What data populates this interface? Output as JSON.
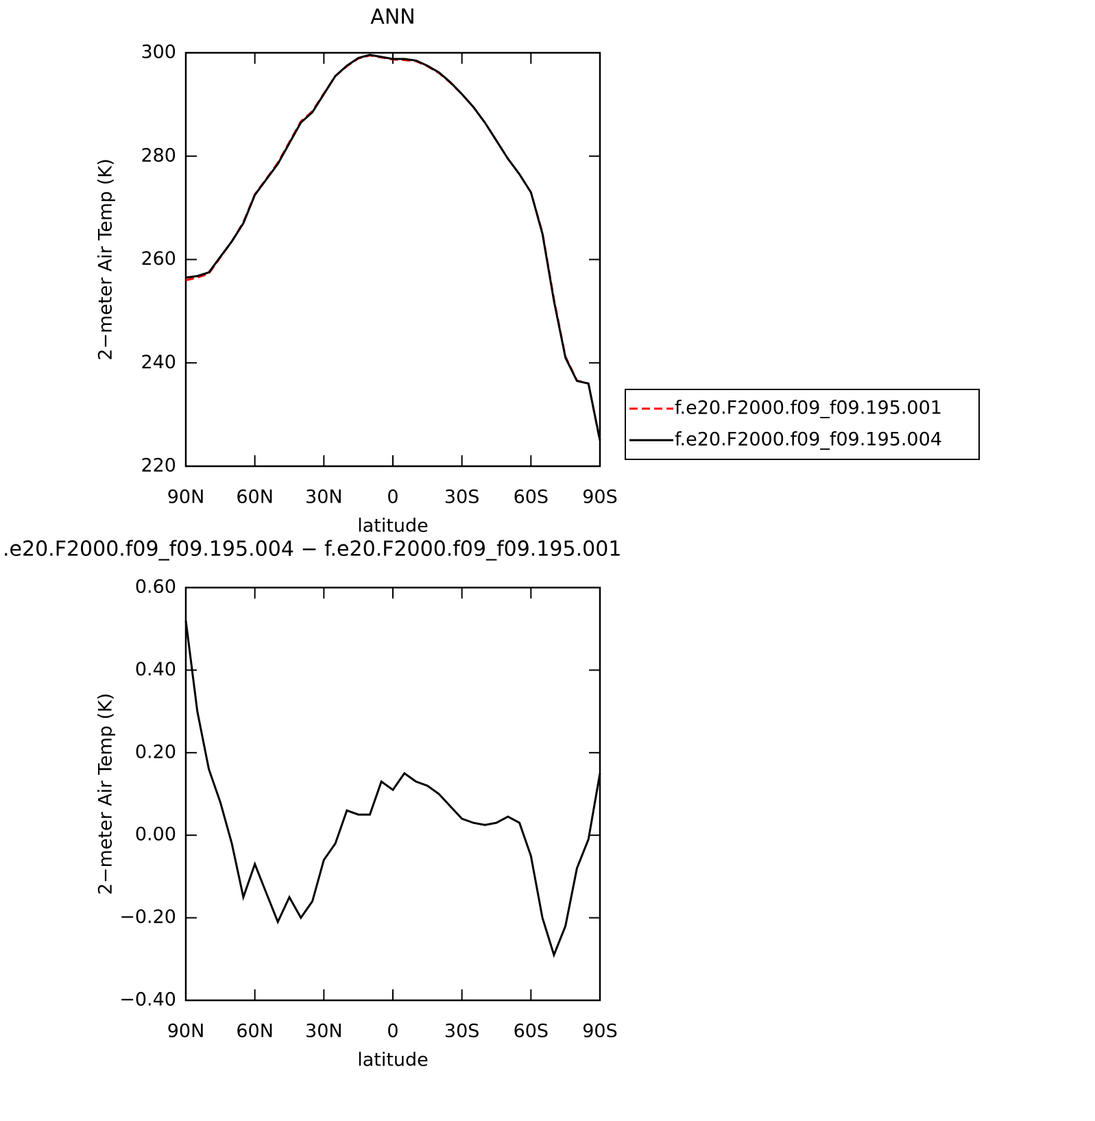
{
  "chart_data": [
    {
      "type": "line",
      "title": "ANN",
      "xlabel": "latitude",
      "ylabel": "2−meter Air Temp (K)",
      "x": [
        90,
        85,
        80,
        75,
        70,
        65,
        60,
        55,
        50,
        45,
        40,
        35,
        30,
        25,
        20,
        15,
        10,
        5,
        0,
        -5,
        -10,
        -15,
        -20,
        -25,
        -30,
        -35,
        -40,
        -45,
        -50,
        -55,
        -60,
        -65,
        -70,
        -75,
        -80,
        -85,
        -90
      ],
      "xlim": [
        90,
        -90
      ],
      "xticks": [
        {
          "value": 90,
          "label": "90N"
        },
        {
          "value": 60,
          "label": "60N"
        },
        {
          "value": 30,
          "label": "30N"
        },
        0,
        {
          "value": -30,
          "label": "30S"
        },
        {
          "value": -60,
          "label": "60S"
        },
        {
          "value": -90,
          "label": "90S"
        }
      ],
      "ylim": [
        220,
        300
      ],
      "yticks": [
        220,
        240,
        260,
        280,
        300
      ],
      "legend": "right",
      "series": [
        {
          "name": "f.e20.F2000.f09_f09.195.001",
          "color": "#ff0000",
          "dash": true,
          "values": [
            256.0,
            256.5,
            257.3,
            260.4,
            263.5,
            267.2,
            272.6,
            275.6,
            278.7,
            282.7,
            286.7,
            288.7,
            292.1,
            295.5,
            297.4,
            298.9,
            299.5,
            299.1,
            298.7,
            298.6,
            298.4,
            297.4,
            296.1,
            294.2,
            292.0,
            289.5,
            286.5,
            283.0,
            279.5,
            276.5,
            273.0,
            265.2,
            252.3,
            241.2,
            236.6,
            236.0,
            224.9
          ]
        },
        {
          "name": "f.e20.F2000.f09_f09.195.004",
          "color": "#000000",
          "dash": false,
          "values": [
            256.5,
            256.8,
            257.5,
            260.5,
            263.5,
            267.0,
            272.5,
            275.5,
            278.5,
            282.5,
            286.5,
            288.5,
            292.0,
            295.5,
            297.5,
            299.0,
            299.6,
            299.2,
            298.8,
            298.8,
            298.5,
            297.5,
            296.2,
            294.3,
            292.0,
            289.5,
            286.5,
            283.0,
            279.5,
            276.5,
            273.0,
            265.0,
            252.0,
            241.0,
            236.5,
            236.0,
            225.0
          ]
        }
      ]
    },
    {
      "type": "line",
      "title": ".e20.F2000.f09_f09.195.004 − f.e20.F2000.f09_f09.195.001",
      "xlabel": "latitude",
      "ylabel": "2−meter Air Temp (K)",
      "x": [
        90,
        85,
        80,
        75,
        70,
        65,
        60,
        55,
        50,
        45,
        40,
        35,
        30,
        25,
        20,
        15,
        10,
        5,
        0,
        -5,
        -10,
        -15,
        -20,
        -25,
        -30,
        -35,
        -40,
        -45,
        -50,
        -55,
        -60,
        -65,
        -70,
        -75,
        -80,
        -85,
        -90
      ],
      "xlim": [
        90,
        -90
      ],
      "xticks": [
        {
          "value": 90,
          "label": "90N"
        },
        {
          "value": 60,
          "label": "60N"
        },
        {
          "value": 30,
          "label": "30N"
        },
        0,
        {
          "value": -30,
          "label": "30S"
        },
        {
          "value": -60,
          "label": "60S"
        },
        {
          "value": -90,
          "label": "90S"
        }
      ],
      "ylim": [
        -0.4,
        0.6
      ],
      "yticks": [
        {
          "value": -0.4,
          "label": "−0.40"
        },
        {
          "value": -0.2,
          "label": "−0.20"
        },
        {
          "value": 0,
          "label": "0.00"
        },
        {
          "value": 0.2,
          "label": "0.20"
        },
        {
          "value": 0.4,
          "label": "0.40"
        },
        {
          "value": 0.6,
          "label": "0.60"
        }
      ],
      "series": [
        {
          "color": "#000000",
          "dash": false,
          "values": [
            0.52,
            0.3,
            0.16,
            0.08,
            -0.02,
            -0.15,
            -0.07,
            -0.14,
            -0.21,
            -0.15,
            -0.2,
            -0.16,
            -0.06,
            -0.02,
            0.06,
            0.05,
            0.05,
            0.13,
            0.11,
            0.15,
            0.13,
            0.12,
            0.1,
            0.07,
            0.04,
            0.03,
            0.025,
            0.03,
            0.045,
            0.03,
            -0.05,
            -0.2,
            -0.29,
            -0.22,
            -0.08,
            -0.01,
            0.15
          ]
        }
      ]
    }
  ]
}
